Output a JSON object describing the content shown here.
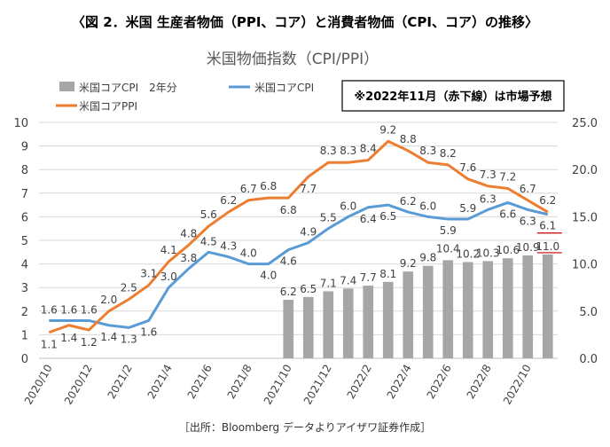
{
  "figure_title": "〈図 2．米国 生産者物価（PPI、コア）と消費者物価（CPI、コア）の推移〉",
  "source": "［出所：Bloomberg データよりアイザワ証券作成］",
  "note": "※2022年11月（赤下線）は市場予想",
  "colors": {
    "bar": "#a6a6a6",
    "cpi": "#5b9bd5",
    "ppi": "#ed7d31",
    "note_border": "#000000",
    "forecast_underline": "#c00000"
  },
  "chart_data": {
    "type": "bar+line",
    "title": "米国物価指数（CPI/PPI）",
    "categories": [
      "2020/10",
      "2020/11",
      "2020/12",
      "2021/1",
      "2021/2",
      "2021/3",
      "2021/4",
      "2021/5",
      "2021/6",
      "2021/7",
      "2021/8",
      "2021/9",
      "2021/10",
      "2021/11",
      "2021/12",
      "2022/1",
      "2022/2",
      "2022/3",
      "2022/4",
      "2022/5",
      "2022/6",
      "2022/7",
      "2022/8",
      "2022/9",
      "2022/10",
      "2022/11"
    ],
    "xtick_labels": [
      "2020/10",
      "2020/12",
      "2021/2",
      "2021/4",
      "2021/6",
      "2021/8",
      "2021/10",
      "2021/12",
      "2022/2",
      "2022/4",
      "2022/6",
      "2022/8",
      "2022/10"
    ],
    "y_left": {
      "min": 0,
      "max": 10,
      "ticks": [
        "0",
        "1",
        "2",
        "3",
        "4",
        "5",
        "6",
        "7",
        "8",
        "9",
        "10"
      ]
    },
    "y_right": {
      "min": 0,
      "max": 25,
      "ticks": [
        "0.0",
        "5.0",
        "10.0",
        "15.0",
        "20.0",
        "25.0"
      ]
    },
    "grid": true,
    "legend_position": "top-left",
    "series": [
      {
        "name": "米国コアCPI　2年分",
        "type": "bar",
        "axis": "right",
        "values": [
          null,
          null,
          null,
          null,
          null,
          null,
          null,
          null,
          null,
          null,
          null,
          null,
          6.2,
          6.5,
          7.1,
          7.4,
          7.7,
          8.1,
          9.2,
          9.8,
          10.4,
          10.2,
          10.3,
          10.6,
          10.9,
          11.0
        ],
        "labels": [
          "",
          "",
          "",
          "",
          "",
          "",
          "",
          "",
          "",
          "",
          "",
          "",
          "6.2",
          "6.5",
          "7.1",
          "7.4",
          "7.7",
          "8.1",
          "9.2",
          "9.8",
          "10.4",
          "10.2",
          "10.3",
          "10.6",
          "10.9",
          "11.0"
        ]
      },
      {
        "name": "米国コアCPI",
        "type": "line",
        "axis": "left",
        "values": [
          1.6,
          1.6,
          1.6,
          1.4,
          1.3,
          1.6,
          3.0,
          3.8,
          4.5,
          4.3,
          4.0,
          4.0,
          4.6,
          4.9,
          5.5,
          6.0,
          6.4,
          6.5,
          6.2,
          6.0,
          5.9,
          5.9,
          6.3,
          6.6,
          6.3,
          6.1
        ],
        "labels": [
          "1.6",
          "1.6",
          "1.6",
          "1.4",
          "1.3",
          "1.6",
          "3.0",
          "3.8",
          "4.5",
          "4.3",
          "4.0",
          "4.0",
          "4.6",
          "4.9",
          "5.5",
          "6.0",
          "6.4",
          "6.5",
          "6.2",
          "6.0",
          "5.9",
          "5.9",
          "6.3",
          "6.6",
          "6.3",
          "6.1"
        ]
      },
      {
        "name": "米国コアPPI",
        "type": "line",
        "axis": "left",
        "values": [
          1.1,
          1.4,
          1.2,
          2.0,
          2.5,
          3.1,
          4.1,
          4.8,
          5.6,
          6.2,
          6.7,
          6.8,
          6.8,
          7.7,
          8.3,
          8.3,
          8.4,
          9.2,
          8.8,
          8.3,
          8.2,
          7.6,
          7.3,
          7.2,
          6.7,
          6.2
        ],
        "labels": [
          "1.1",
          "1.4",
          "1.2",
          "2.0",
          "2.5",
          "3.1",
          "4.1",
          "4.8",
          "5.6",
          "6.2",
          "6.7",
          "6.8",
          "6.8",
          "7.7",
          "8.3",
          "8.3",
          "8.4",
          "9.2",
          "8.8",
          "8.3",
          "8.2",
          "7.6",
          "7.3",
          "7.2",
          "6.7",
          "6.2"
        ]
      }
    ]
  }
}
